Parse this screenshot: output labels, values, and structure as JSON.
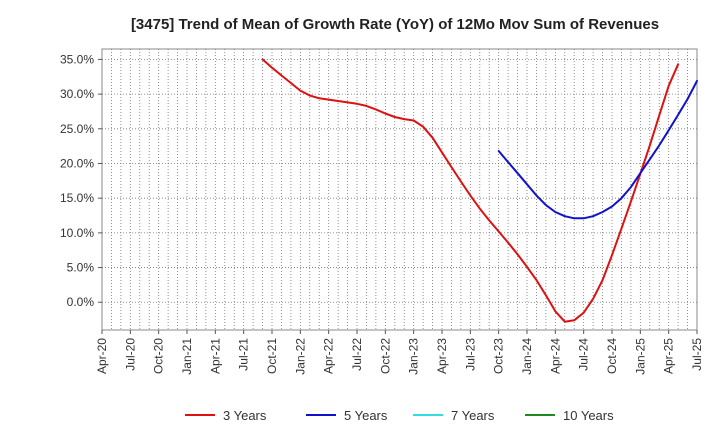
{
  "chart_data": {
    "type": "line",
    "title": "[3475]  Trend of Mean of Growth Rate (YoY) of 12Mo Mov Sum of Revenues",
    "xlabel": "",
    "ylabel": "",
    "ylim": [
      -4,
      36.5
    ],
    "y_ticks": [
      35,
      30,
      25,
      20,
      15,
      10,
      5,
      0
    ],
    "y_tick_labels": [
      "35.0%",
      "30.0%",
      "25.0%",
      "20.0%",
      "15.0%",
      "10.0%",
      "5.0%",
      "0.0%"
    ],
    "x_tick_labels": [
      "Apr-20",
      "Jul-20",
      "Oct-20",
      "Jan-21",
      "Apr-21",
      "Jul-21",
      "Oct-21",
      "Jan-22",
      "Apr-22",
      "Jul-22",
      "Oct-22",
      "Jan-23",
      "Apr-23",
      "Jul-23",
      "Oct-23",
      "Jan-24",
      "Apr-24",
      "Jul-24",
      "Oct-24",
      "Jan-25",
      "Apr-25",
      "Jul-25"
    ],
    "x_start": "Apr-20",
    "x_end": "Jul-25",
    "grid": true,
    "legend_position": "bottom",
    "series": [
      {
        "name": "3 Years",
        "color": "#dd1111",
        "points": [
          [
            "Sep-21",
            35.0
          ],
          [
            "Oct-21",
            33.8
          ],
          [
            "Nov-21",
            32.7
          ],
          [
            "Dec-21",
            31.6
          ],
          [
            "Jan-22",
            30.5
          ],
          [
            "Feb-22",
            29.8
          ],
          [
            "Mar-22",
            29.4
          ],
          [
            "Apr-22",
            29.2
          ],
          [
            "May-22",
            29.0
          ],
          [
            "Jun-22",
            28.8
          ],
          [
            "Jul-22",
            28.6
          ],
          [
            "Aug-22",
            28.3
          ],
          [
            "Sep-22",
            27.8
          ],
          [
            "Oct-22",
            27.2
          ],
          [
            "Nov-22",
            26.7
          ],
          [
            "Dec-22",
            26.4
          ],
          [
            "Jan-23",
            26.2
          ],
          [
            "Feb-23",
            25.3
          ],
          [
            "Mar-23",
            23.7
          ],
          [
            "Apr-23",
            21.6
          ],
          [
            "May-23",
            19.5
          ],
          [
            "Jun-23",
            17.4
          ],
          [
            "Jul-23",
            15.4
          ],
          [
            "Aug-23",
            13.5
          ],
          [
            "Sep-23",
            11.8
          ],
          [
            "Oct-23",
            10.2
          ],
          [
            "Nov-23",
            8.6
          ],
          [
            "Dec-23",
            6.9
          ],
          [
            "Jan-24",
            5.1
          ],
          [
            "Feb-24",
            3.2
          ],
          [
            "Mar-24",
            1.0
          ],
          [
            "Apr-24",
            -1.3
          ],
          [
            "May-24",
            -2.8
          ],
          [
            "Jun-24",
            -2.6
          ],
          [
            "Jul-24",
            -1.5
          ],
          [
            "Aug-24",
            0.5
          ],
          [
            "Sep-24",
            3.2
          ],
          [
            "Oct-24",
            6.8
          ],
          [
            "Nov-24",
            10.6
          ],
          [
            "Dec-24",
            14.5
          ],
          [
            "Jan-25",
            18.5
          ],
          [
            "Feb-25",
            22.6
          ],
          [
            "Mar-25",
            26.9
          ],
          [
            "Apr-25",
            31.2
          ],
          [
            "May-25",
            34.3
          ]
        ]
      },
      {
        "name": "5 Years",
        "color": "#1111cc",
        "points": [
          [
            "Oct-23",
            21.8
          ],
          [
            "Nov-23",
            20.2
          ],
          [
            "Dec-23",
            18.6
          ],
          [
            "Jan-24",
            17.0
          ],
          [
            "Feb-24",
            15.4
          ],
          [
            "Mar-24",
            14.0
          ],
          [
            "Apr-24",
            13.0
          ],
          [
            "May-24",
            12.4
          ],
          [
            "Jun-24",
            12.1
          ],
          [
            "Jul-24",
            12.1
          ],
          [
            "Aug-24",
            12.4
          ],
          [
            "Sep-24",
            13.0
          ],
          [
            "Oct-24",
            13.8
          ],
          [
            "Nov-24",
            15.0
          ],
          [
            "Dec-24",
            16.6
          ],
          [
            "Jan-25",
            18.6
          ],
          [
            "Feb-25",
            20.6
          ],
          [
            "Mar-25",
            22.6
          ],
          [
            "Apr-25",
            24.8
          ],
          [
            "May-25",
            27.0
          ],
          [
            "Jun-25",
            29.3
          ],
          [
            "Jul-25",
            31.9
          ]
        ]
      },
      {
        "name": "7 Years",
        "color": "#33dddd",
        "points": []
      },
      {
        "name": "10 Years",
        "color": "#228822",
        "points": []
      }
    ]
  }
}
